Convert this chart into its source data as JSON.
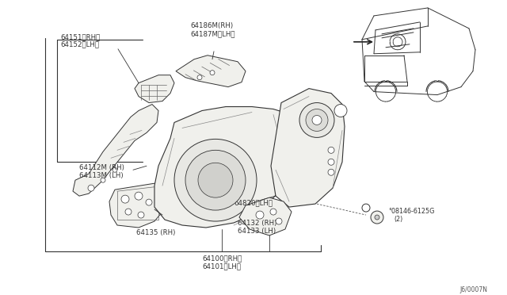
{
  "bg_color": "#ffffff",
  "line_color": "#333333",
  "part_fill": "#f0f0ec",
  "part_outline": "#333333",
  "label_color": "#333333",
  "diagram_code": "J6/0007N",
  "labels": {
    "top_left_1": "64151〈RH〉",
    "top_left_2": "64152〈LH〉",
    "top_center_1": "64186M(RH)",
    "top_center_2": "64187M〈LH〉",
    "mid_left_1": "64112M (RH)",
    "mid_left_2": "64113M (LH)",
    "mid_center": "64820〈LH〉",
    "mid_right_1": "64132 (RH)",
    "mid_right_2": "64133 (LH)",
    "bottom_left": "64135 (RH)",
    "bottom_center_1": "64100〈RH〉",
    "bottom_center_2": "64101〈LH〉",
    "bolt_label_1": "°08146-6125G",
    "bolt_label_2": "(2)"
  }
}
